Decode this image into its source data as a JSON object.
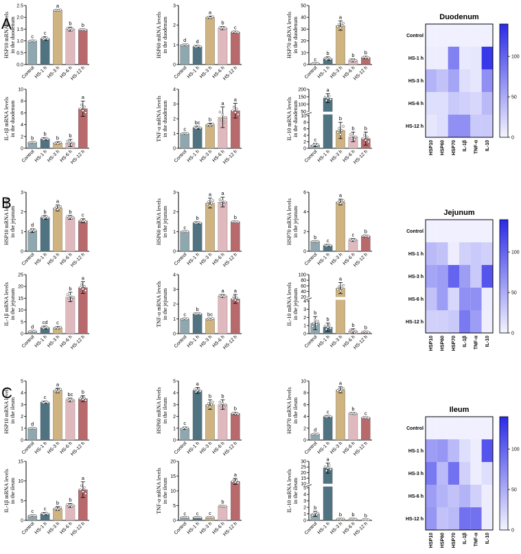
{
  "colors": {
    "control": "#8fa8b0",
    "hs1": "#4f7381",
    "hs3": "#cfb482",
    "hs6": "#dfb9bd",
    "hs12": "#b7696c",
    "heat_low": "#f4f4ff",
    "heat_high": "#2a2ae8"
  },
  "sections": [
    {
      "letter": "A",
      "heat_title": "Duodenum"
    },
    {
      "letter": "B",
      "heat_title": "Jejunum"
    },
    {
      "letter": "C",
      "heat_title": "Ileum"
    }
  ],
  "chart_data": [
    {
      "type": "bar",
      "id": "A-HSP10",
      "categories": [
        "Control",
        "HS-1 h",
        "HS-3 h",
        "HS-6 h",
        "HS-12 h"
      ],
      "values": [
        1.0,
        1.1,
        2.3,
        1.5,
        1.48
      ],
      "errors": [
        0.03,
        0.08,
        0.03,
        0.08,
        0.03
      ],
      "letters": [
        "c",
        "c",
        "a",
        "b",
        "b"
      ],
      "ylabel": [
        "HSP10 mRNA levels",
        "in the duodenum"
      ],
      "ylim": [
        0,
        2.5
      ],
      "yticks": [
        "0.0",
        "0.5",
        "1.0",
        "1.5",
        "2.0",
        "2.5"
      ]
    },
    {
      "type": "bar",
      "id": "A-HSP60",
      "categories": [
        "Control",
        "HS-1 h",
        "HS-3 h",
        "HS-6 h",
        "HS-12 h"
      ],
      "values": [
        1.0,
        0.92,
        2.4,
        1.85,
        1.65
      ],
      "errors": [
        0.04,
        0.05,
        0.06,
        0.08,
        0.05
      ],
      "letters": [
        "d",
        "d",
        "a",
        "b",
        "c"
      ],
      "ylabel": [
        "HSP60 mRNA levels",
        "in the duodenum"
      ],
      "ylim": [
        0,
        3
      ],
      "yticks": [
        "0",
        "1",
        "2",
        "3"
      ]
    },
    {
      "type": "bar",
      "id": "A-HSP70",
      "categories": [
        "Control",
        "HS-1 h",
        "HS-3 h",
        "HS-6 h",
        "HS-12 h"
      ],
      "values": [
        1.0,
        5.0,
        33.0,
        3.5,
        6.0
      ],
      "errors": [
        0.3,
        1.5,
        4.0,
        1.2,
        1.0
      ],
      "letters": [
        "c",
        "b",
        "a",
        "b",
        "b"
      ],
      "ylabel": [
        "HSP70 mRNA levels",
        "in the duodenum"
      ],
      "ylim": [
        0,
        50
      ],
      "yticks": [
        "0",
        "10",
        "20",
        "30",
        "40",
        "50"
      ]
    },
    {
      "type": "bar",
      "id": "A-IL1b",
      "categories": [
        "Control",
        "HS-1 h",
        "HS-3 h",
        "HS-6 h",
        "HS-12 h"
      ],
      "values": [
        1.0,
        1.6,
        0.9,
        0.9,
        6.7
      ],
      "errors": [
        0.1,
        0.2,
        0.2,
        0.6,
        1.3
      ],
      "letters": [
        "b",
        "b",
        "b",
        "b",
        "a"
      ],
      "ylabel": [
        "IL-1β mRNA levels",
        "in the duodenum"
      ],
      "ylim": [
        0,
        10
      ],
      "yticks": [
        "0",
        "2",
        "4",
        "6",
        "8",
        "10"
      ]
    },
    {
      "type": "bar",
      "id": "A-TNFa",
      "categories": [
        "Control",
        "HS-1 h",
        "HS-3 h",
        "HS-6 h",
        "HS-12 h"
      ],
      "values": [
        1.0,
        1.4,
        1.6,
        2.1,
        2.55
      ],
      "errors": [
        0.05,
        0.1,
        0.1,
        0.7,
        0.5
      ],
      "letters": [
        "c",
        "bc",
        "b",
        "a",
        "a"
      ],
      "ylabel": [
        "TNF-α mRNA levels",
        "in the duodenum"
      ],
      "ylim": [
        0,
        4
      ],
      "yticks": [
        "0",
        "1",
        "2",
        "3",
        "4"
      ]
    },
    {
      "type": "bar",
      "id": "A-IL10",
      "categories": [
        "Control",
        "HS-1 h",
        "HS-3 h",
        "HS-6 h",
        "HS-12 h"
      ],
      "values": [
        1.0,
        140,
        5.5,
        3.5,
        3.0
      ],
      "errors": [
        0.5,
        30,
        2.5,
        1.5,
        2.0
      ],
      "letters": [
        "c",
        "a",
        "b",
        "b",
        "b"
      ],
      "ylabel": [
        "IL-10 mRNA levels",
        "in the duodenum"
      ],
      "ylim": [
        0,
        200
      ],
      "yticks": [
        "0",
        "2",
        "4",
        "6",
        "8",
        "10",
        "50",
        "100",
        "150",
        "200"
      ]
    },
    {
      "type": "bar",
      "id": "B-HSP10",
      "categories": [
        "Control",
        "HS-1 h",
        "HS-3 h",
        "HS-6 h",
        "HS-12 h"
      ],
      "values": [
        1.05,
        1.72,
        2.2,
        1.72,
        1.55
      ],
      "errors": [
        0.1,
        0.1,
        0.15,
        0.1,
        0.1
      ],
      "letters": [
        "d",
        "b",
        "a",
        "b",
        "c"
      ],
      "ylabel": [
        "HSP10 mRNA levels",
        "in the jejunum"
      ],
      "ylim": [
        0,
        3
      ],
      "yticks": [
        "0",
        "1",
        "2",
        "3"
      ]
    },
    {
      "type": "bar",
      "id": "B-HSP60",
      "categories": [
        "Control",
        "HS-1 h",
        "HS-3 h",
        "HS-6 h",
        "HS-12 h"
      ],
      "values": [
        1.0,
        1.45,
        2.45,
        2.5,
        1.5
      ],
      "errors": [
        0.02,
        0.05,
        0.25,
        0.25,
        0.03
      ],
      "letters": [
        "c",
        "b",
        "a",
        "a",
        "b"
      ],
      "ylabel": [
        "HSP60 mRNA levels",
        "in the jejunum"
      ],
      "ylim": [
        0,
        3
      ],
      "yticks": [
        "0",
        "1",
        "2",
        "3"
      ]
    },
    {
      "type": "bar",
      "id": "B-HSP70",
      "categories": [
        "Control",
        "HS-1 h",
        "HS-3 h",
        "HS-6 h",
        "HS-12 h"
      ],
      "values": [
        1.0,
        0.6,
        5.0,
        1.15,
        1.55
      ],
      "errors": [
        0.05,
        0.1,
        0.3,
        0.15,
        0.08
      ],
      "letters": [
        "b",
        "c",
        "a",
        "c",
        "b"
      ],
      "ylabel": [
        "HSP70 mRNA levels",
        "in the jejunum"
      ],
      "ylim": [
        0,
        6
      ],
      "yticks": [
        "0",
        "2",
        "4",
        "6"
      ]
    },
    {
      "type": "bar",
      "id": "B-IL1b",
      "categories": [
        "Control",
        "HS-1 h",
        "HS-3 h",
        "HS-6 h",
        "HS-12 h"
      ],
      "values": [
        1.0,
        2.6,
        2.5,
        15.5,
        19.5
      ],
      "errors": [
        0.3,
        0.6,
        0.5,
        2.0,
        2.5
      ],
      "letters": [
        "d",
        "cd",
        "c",
        "b",
        "a"
      ],
      "ylabel": [
        "IL-1β mRNA levels",
        "in the jejunum"
      ],
      "ylim": [
        0,
        25
      ],
      "yticks": [
        "0",
        "5",
        "10",
        "15",
        "20",
        "25"
      ]
    },
    {
      "type": "bar",
      "id": "B-TNFa",
      "categories": [
        "Control",
        "HS-1 h",
        "HS-3 h",
        "HS-6 h",
        "HS-12 h"
      ],
      "values": [
        1.0,
        1.35,
        1.0,
        2.55,
        2.35
      ],
      "errors": [
        0.05,
        0.05,
        0.05,
        0.1,
        0.3
      ],
      "letters": [
        "c",
        "b",
        "bc",
        "a",
        "a"
      ],
      "ylabel": [
        "TNF-α mRNA levels",
        "in the jejunum"
      ],
      "ylim": [
        0,
        4
      ],
      "yticks": [
        "0",
        "1",
        "2",
        "3",
        "4"
      ]
    },
    {
      "type": "bar",
      "id": "B-IL10",
      "categories": [
        "Control",
        "HS-1 h",
        "HS-3 h",
        "HS-6 h",
        "HS-12 h"
      ],
      "values": [
        1.3,
        0.8,
        52,
        0.3,
        0.2
      ],
      "errors": [
        0.8,
        0.5,
        20,
        0.3,
        0.1
      ],
      "letters": [
        "b",
        "b",
        "a",
        "b",
        "b"
      ],
      "ylabel": [
        "IL-10 mRNA levels",
        "in the jejunum"
      ],
      "ylim": [
        0,
        100
      ],
      "yticks": [
        "0",
        "1",
        "2",
        "3",
        "4",
        "20",
        "40",
        "60",
        "80",
        "100"
      ]
    },
    {
      "type": "bar",
      "id": "C-HSP10",
      "categories": [
        "Control",
        "HS-1 h",
        "HS-3 h",
        "HS-6 h",
        "HS-12 h"
      ],
      "values": [
        1.0,
        3.2,
        4.2,
        3.4,
        3.5
      ],
      "errors": [
        0.05,
        0.1,
        0.2,
        0.15,
        0.25
      ],
      "letters": [
        "d",
        "c",
        "a",
        "bc",
        "b"
      ],
      "ylabel": [
        "HSP10 mRNA levels",
        "in the ileum"
      ],
      "ylim": [
        0,
        5
      ],
      "yticks": [
        "0",
        "1",
        "2",
        "3",
        "4",
        "5"
      ]
    },
    {
      "type": "bar",
      "id": "C-HSP60",
      "categories": [
        "Control",
        "HS-1 h",
        "HS-3 h",
        "HS-6 h",
        "HS-12 h"
      ],
      "values": [
        1.0,
        4.2,
        3.0,
        3.0,
        2.25
      ],
      "errors": [
        0.1,
        0.25,
        0.4,
        0.4,
        0.1
      ],
      "letters": [
        "c",
        "a",
        "b",
        "b",
        "b"
      ],
      "ylabel": [
        "HSP60 mRNA levels",
        "in the ileum"
      ],
      "ylim": [
        0,
        5
      ],
      "yticks": [
        "0",
        "1",
        "2",
        "3",
        "4",
        "5"
      ]
    },
    {
      "type": "bar",
      "id": "C-HSP70",
      "categories": [
        "Control",
        "HS-1 h",
        "HS-3 h",
        "HS-6 h",
        "HS-12 h"
      ],
      "values": [
        1.0,
        4.0,
        8.5,
        4.5,
        3.8
      ],
      "errors": [
        0.1,
        0.15,
        0.5,
        0.15,
        0.1
      ],
      "letters": [
        "d",
        "c",
        "a",
        "b",
        "c"
      ],
      "ylabel": [
        "HSP70 mRNA levels",
        "in the ileum"
      ],
      "ylim": [
        0,
        10
      ],
      "yticks": [
        "0",
        "2",
        "4",
        "6",
        "8",
        "10"
      ]
    },
    {
      "type": "bar",
      "id": "C-IL1b",
      "categories": [
        "Control",
        "HS-1 h",
        "HS-3 h",
        "HS-6 h",
        "HS-12 h"
      ],
      "values": [
        1.2,
        1.7,
        3.0,
        3.8,
        7.8
      ],
      "errors": [
        0.2,
        0.3,
        0.5,
        0.5,
        2.0
      ],
      "letters": [
        "c",
        "c",
        "b",
        "b",
        "a"
      ],
      "ylabel": [
        "IL-1β mRNA levels",
        "in the ileum"
      ],
      "ylim": [
        0,
        15
      ],
      "yticks": [
        "0",
        "5",
        "10",
        "15"
      ]
    },
    {
      "type": "bar",
      "id": "C-TNFa",
      "categories": [
        "Control",
        "HS-1 h",
        "HS-3 h",
        "HS-6 h",
        "HS-12 h"
      ],
      "values": [
        1.0,
        1.0,
        1.0,
        4.8,
        13.2
      ],
      "errors": [
        0.1,
        0.1,
        0.2,
        0.2,
        1.0
      ],
      "letters": [
        "c",
        "c",
        "c",
        "b",
        "a"
      ],
      "ylabel": [
        "TNF-α mRNA levels",
        "in the ileum"
      ],
      "ylim": [
        0,
        20
      ],
      "yticks": [
        "0",
        "5",
        "10",
        "15",
        "20"
      ]
    },
    {
      "type": "bar",
      "id": "C-IL10",
      "categories": [
        "Control",
        "HS-1 h",
        "HS-3 h",
        "HS-6 h",
        "HS-12 h"
      ],
      "values": [
        1.0,
        24,
        0.2,
        0.2,
        0.1
      ],
      "errors": [
        0.4,
        4.5,
        0.1,
        0.1,
        0.05
      ],
      "letters": [
        "b",
        "a",
        "b",
        "b",
        "b"
      ],
      "ylabel": [
        "IL-10 mRNA levels",
        "in the ileum"
      ],
      "ylim": [
        0,
        30
      ],
      "yticks": [
        "0",
        "1",
        "2",
        "3",
        "4",
        "5",
        "10",
        "15",
        "20",
        "25",
        "30"
      ]
    },
    {
      "type": "heatmap",
      "id": "A-heat",
      "title": "Duodenum",
      "rows": [
        "Control",
        "HS-1 h",
        "HS-3 h",
        "HS-6 h",
        "HS-12 h"
      ],
      "cols": [
        "HSP10",
        "HSP60",
        "HSP70",
        "IL-1β",
        "TNF-α",
        "IL-10"
      ],
      "values": [
        [
          3,
          3,
          3,
          3,
          3,
          3
        ],
        [
          5,
          5,
          80,
          8,
          10,
          130
        ],
        [
          45,
          35,
          55,
          15,
          10,
          70
        ],
        [
          15,
          15,
          30,
          25,
          20,
          40
        ],
        [
          10,
          15,
          70,
          70,
          30,
          30
        ]
      ],
      "scale": [
        0,
        140
      ],
      "scale_ticks": [
        "0",
        "50",
        "100"
      ]
    },
    {
      "type": "heatmap",
      "id": "B-heat",
      "title": "Jejunum",
      "rows": [
        "Control",
        "HS-1 h",
        "HS-3 h",
        "HS-6 h",
        "HS-12 h"
      ],
      "cols": [
        "HSP10",
        "HSP60",
        "HSP70",
        "IL-1β",
        "TNF-α",
        "IL-10"
      ],
      "values": [
        [
          3,
          3,
          3,
          3,
          3,
          3
        ],
        [
          40,
          35,
          5,
          25,
          30,
          25
        ],
        [
          55,
          60,
          100,
          60,
          30,
          110
        ],
        [
          35,
          60,
          20,
          70,
          70,
          5
        ],
        [
          25,
          25,
          30,
          85,
          60,
          4
        ]
      ],
      "scale": [
        0,
        140
      ],
      "scale_ticks": [
        "0",
        "50",
        "100"
      ]
    },
    {
      "type": "heatmap",
      "id": "C-heat",
      "title": "Ileum",
      "rows": [
        "Control",
        "HS-1 h",
        "HS-3 h",
        "HS-6 h",
        "HS-12 h"
      ],
      "cols": [
        "HSP10",
        "HSP60",
        "HSP70",
        "IL-1β",
        "TNF-α",
        "IL-10"
      ],
      "values": [
        [
          3,
          3,
          3,
          3,
          3,
          3
        ],
        [
          60,
          65,
          40,
          15,
          5,
          110
        ],
        [
          85,
          40,
          90,
          25,
          5,
          15
        ],
        [
          60,
          45,
          35,
          45,
          25,
          5
        ],
        [
          65,
          35,
          40,
          90,
          90,
          5
        ]
      ],
      "scale": [
        0,
        140
      ],
      "scale_ticks": [
        "0",
        "50",
        "100"
      ]
    }
  ]
}
